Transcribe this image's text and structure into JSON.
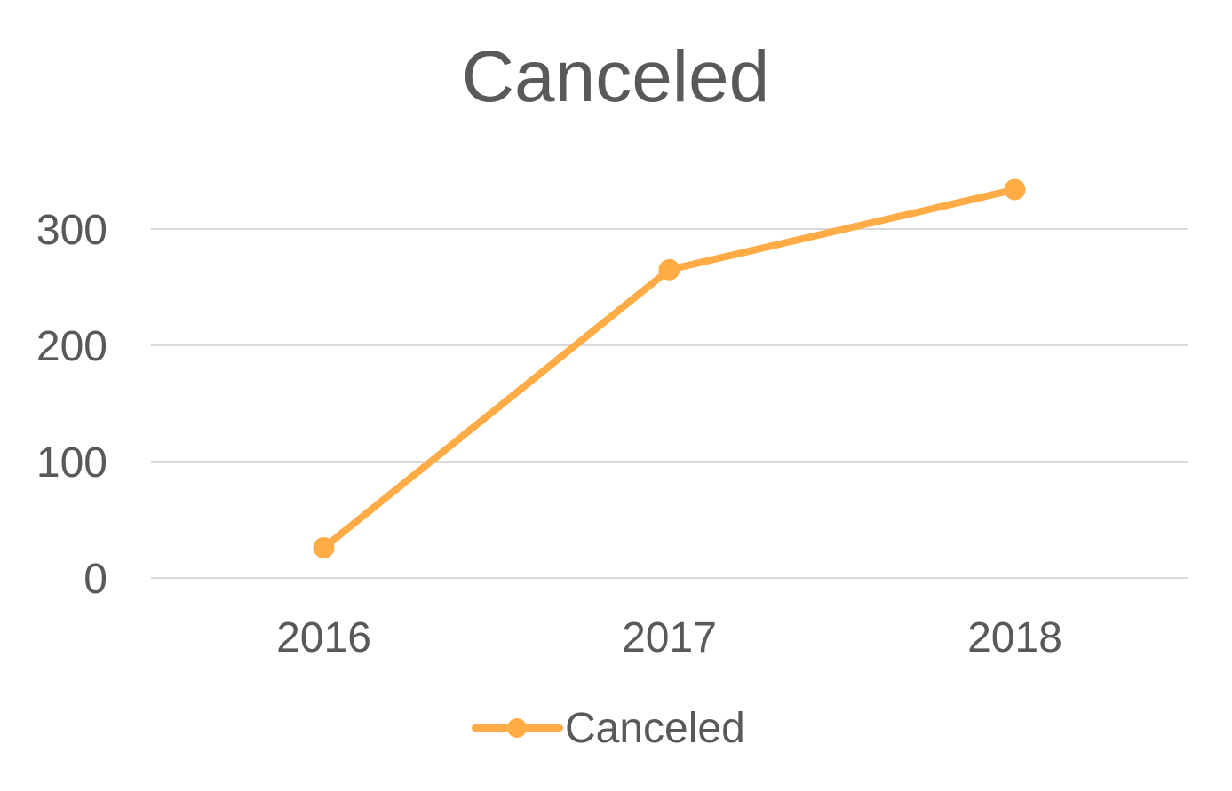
{
  "chart_data": {
    "type": "line",
    "title": "Canceled",
    "categories": [
      "2016",
      "2017",
      "2018"
    ],
    "series": [
      {
        "name": "Canceled",
        "values": [
          26,
          265,
          334
        ],
        "color": "#ffac47"
      }
    ],
    "xlabel": "",
    "ylabel": "",
    "ylim": [
      0,
      300
    ],
    "yticks": [
      0,
      100,
      200,
      300
    ],
    "grid": true,
    "legend": "bottom"
  }
}
